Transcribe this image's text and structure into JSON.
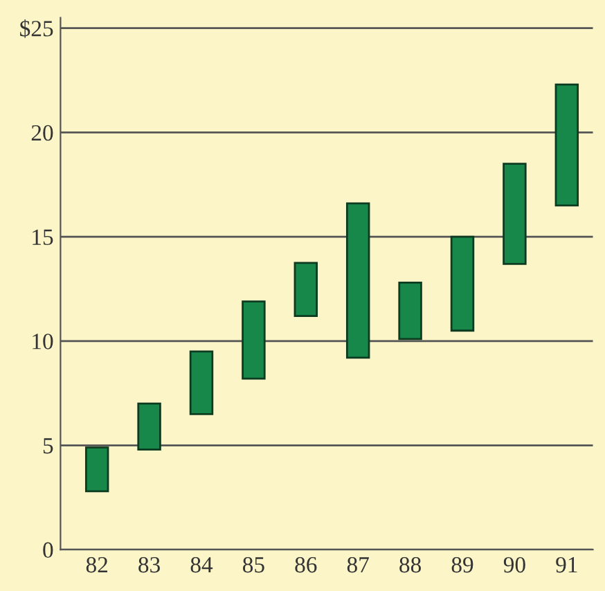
{
  "chart_data": {
    "type": "bar",
    "categories": [
      "82",
      "83",
      "84",
      "85",
      "86",
      "87",
      "88",
      "89",
      "90",
      "91"
    ],
    "base": [
      2.8,
      4.8,
      6.5,
      8.2,
      11.2,
      9.2,
      10.1,
      10.5,
      13.7,
      16.5
    ],
    "values": [
      2.1,
      2.2,
      3.0,
      3.7,
      2.55,
      7.4,
      2.7,
      4.5,
      4.8,
      5.8
    ],
    "color": "#17874a",
    "ylim": [
      0,
      25.5
    ],
    "yticks": [
      0,
      5,
      10,
      15,
      20,
      {
        "value": 25,
        "label": "$25"
      }
    ],
    "grid": "y"
  }
}
